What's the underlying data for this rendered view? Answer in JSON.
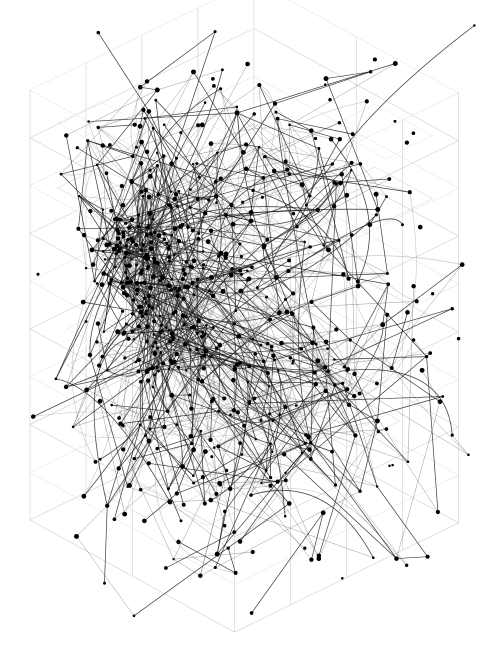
{
  "diagram": {
    "style": "isometric wireframe network graph",
    "colors": {
      "background": "#ffffff",
      "node": "#000000",
      "edge_dark": "#1a1a1a",
      "edge_mid": "#555555",
      "wireframe": "#cfcfcf",
      "wireframe_faint": "#e6e6e6"
    },
    "text": []
  }
}
